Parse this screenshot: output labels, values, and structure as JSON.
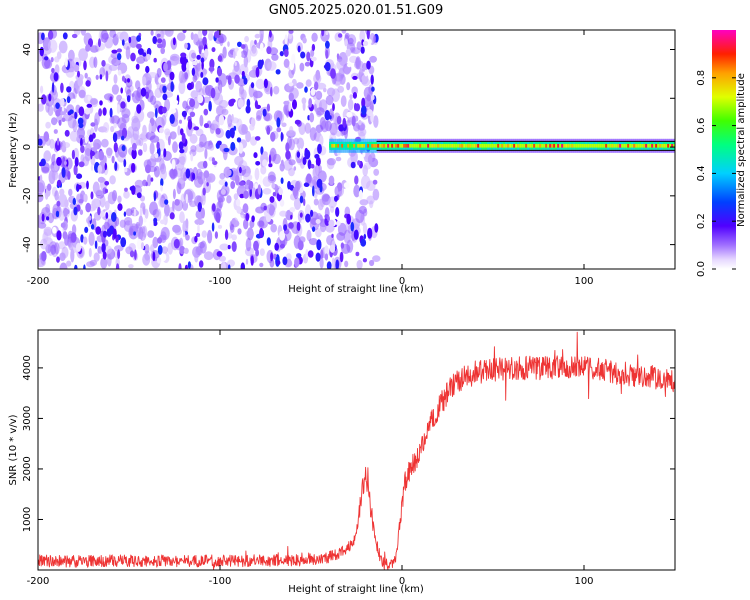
{
  "title": "GN05.2025.020.01.51.G09",
  "colors": {
    "snr_line": "#ee3333",
    "axis": "#000000",
    "background": "#ffffff"
  },
  "chart_data": [
    {
      "type": "heatmap",
      "xlabel": "Height of straight line (km)",
      "ylabel": "Frequency (Hz)",
      "xlim": [
        -200,
        150
      ],
      "ylim": [
        -50,
        48
      ],
      "x_ticks": [
        -200,
        -100,
        0,
        100
      ],
      "x_tick_labels": [
        "-200",
        "-100",
        "0",
        "100"
      ],
      "y_ticks": [
        -40,
        -20,
        0,
        20,
        40
      ],
      "y_tick_labels": [
        "-40",
        "-20",
        "0",
        "20",
        "40"
      ],
      "colorbar": {
        "label": "Normalized spectral amplitude",
        "range": [
          0,
          1
        ],
        "ticks": [
          0.0,
          0.2,
          0.4,
          0.6,
          0.8
        ],
        "tick_labels": [
          "0.0",
          "0.2",
          "0.4",
          "0.6",
          "0.8"
        ],
        "colormap": "rainbow (white-violet-blue-cyan-green-yellow-red-magenta)"
      },
      "regions": [
        {
          "description": "noise",
          "x_range": [
            -200,
            -14
          ],
          "frequency_range": [
            -50,
            48
          ],
          "amplitude_range": [
            0.0,
            0.25
          ]
        },
        {
          "description": "signal",
          "x_range": [
            -40,
            150
          ],
          "frequency": 0.5,
          "amplitude_range": [
            0.4,
            0.95
          ]
        }
      ],
      "grid": false,
      "legend": "none"
    },
    {
      "type": "line",
      "xlabel": "Height of straight line (km)",
      "ylabel": "SNR (10 * v/v)",
      "xlim": [
        -200,
        150
      ],
      "ylim": [
        0,
        4750
      ],
      "x_ticks": [
        -200,
        -100,
        0,
        100
      ],
      "x_tick_labels": [
        "-200",
        "-100",
        "0",
        "100"
      ],
      "y_ticks": [
        1000,
        2000,
        3000,
        4000
      ],
      "y_tick_labels": [
        "1000",
        "2000",
        "3000",
        "4000"
      ],
      "series": [
        {
          "color": "#ee3333",
          "x": [
            -200,
            -180,
            -160,
            -140,
            -120,
            -100,
            -80,
            -60,
            -45,
            -35,
            -30,
            -26,
            -24,
            -22,
            -20,
            -18,
            -16,
            -14,
            -12,
            -10,
            -7,
            -5,
            -3,
            -1,
            1,
            3,
            5,
            8,
            10,
            13,
            16,
            20,
            25,
            30,
            40,
            50,
            60,
            70,
            80,
            90,
            100,
            110,
            120,
            130,
            140,
            150
          ],
          "y": [
            180,
            170,
            180,
            175,
            180,
            180,
            185,
            190,
            220,
            300,
            450,
            600,
            1000,
            1500,
            1950,
            1500,
            900,
            500,
            250,
            150,
            100,
            150,
            300,
            1000,
            1600,
            1900,
            2000,
            2200,
            2400,
            2700,
            2950,
            3200,
            3500,
            3750,
            3900,
            3950,
            3980,
            4000,
            4000,
            4020,
            4000,
            3950,
            3900,
            3850,
            3800,
            3750
          ],
          "noise_amplitude": 120
        }
      ],
      "grid": false,
      "legend": "none"
    }
  ]
}
